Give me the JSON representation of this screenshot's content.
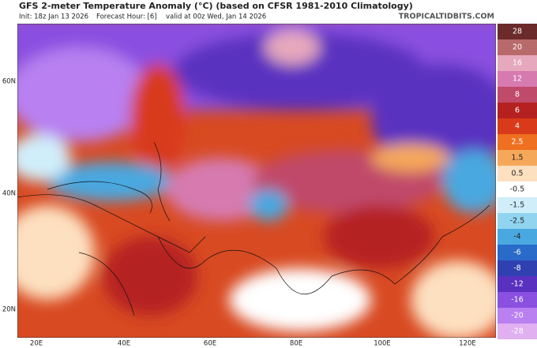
{
  "header": {
    "title": "GFS 2-meter Temperature Anomaly (°C) (based on CFSR 1981-2010 Climatology)",
    "init": "Init: 18z Jan 13 2026",
    "forecast_hour": "Forecast Hour: [6]",
    "valid": "valid at 00z Wed, Jan 14 2026",
    "site": "TROPICALTIDBITS.COM"
  },
  "map": {
    "lat_labels": [
      "60N",
      "40N",
      "20N"
    ],
    "lon_labels": [
      "20E",
      "40E",
      "60E",
      "80E",
      "100E",
      "120E"
    ]
  },
  "colorbar": {
    "levels": [
      {
        "value": 28,
        "color": "#6b2b2b"
      },
      {
        "value": 20,
        "color": "#b86a6a"
      },
      {
        "value": 16,
        "color": "#e6a8bc"
      },
      {
        "value": 12,
        "color": "#d67ab0"
      },
      {
        "value": 8,
        "color": "#c04a6a"
      },
      {
        "value": 6,
        "color": "#b52020"
      },
      {
        "value": 4,
        "color": "#d83a1a"
      },
      {
        "value": 2.5,
        "color": "#ee7020"
      },
      {
        "value": 1.5,
        "color": "#f6a85a"
      },
      {
        "value": 0.5,
        "color": "#fde0c0"
      },
      {
        "value": -0.5,
        "color": "#ffffff"
      },
      {
        "value": -1.5,
        "color": "#d0eefa"
      },
      {
        "value": -2.5,
        "color": "#90d4f0"
      },
      {
        "value": -4,
        "color": "#4aa8e0"
      },
      {
        "value": -6,
        "color": "#2a6ac8"
      },
      {
        "value": -8,
        "color": "#3040b0"
      },
      {
        "value": -12,
        "color": "#5a30c0"
      },
      {
        "value": -16,
        "color": "#8a50e0"
      },
      {
        "value": -20,
        "color": "#b880f0"
      },
      {
        "value": -28,
        "color": "#e0b0f0"
      }
    ]
  }
}
